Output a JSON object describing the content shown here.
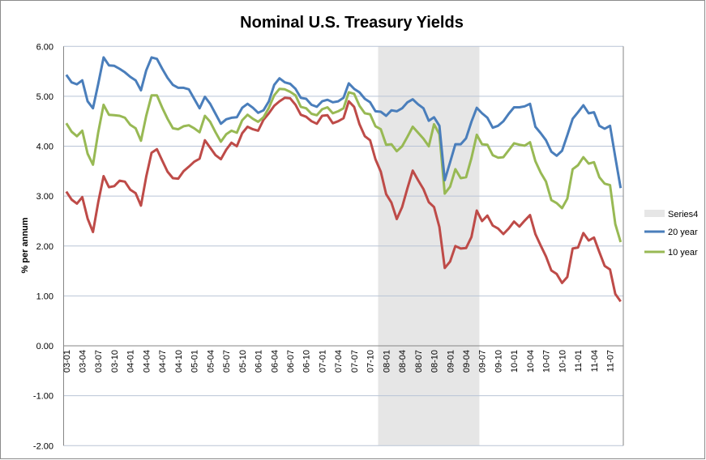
{
  "chart_data": {
    "type": "line",
    "title": "Nominal U.S. Treasury Yields",
    "xlabel": "",
    "ylabel": "% per annum",
    "ylim": [
      -2,
      6
    ],
    "yticks": [
      "-2.00",
      "-1.00",
      "0.00",
      "1.00",
      "2.00",
      "3.00",
      "4.00",
      "5.00",
      "6.00"
    ],
    "grid": true,
    "legend": "right",
    "categories": [
      "03-01",
      "03-02",
      "03-03",
      "03-04",
      "03-05",
      "03-06",
      "03-07",
      "03-08",
      "03-09",
      "03-10",
      "03-11",
      "03-12",
      "04-01",
      "04-02",
      "04-03",
      "04-04",
      "04-05",
      "04-06",
      "04-07",
      "04-08",
      "04-09",
      "04-10",
      "04-11",
      "04-12",
      "05-01",
      "05-02",
      "05-03",
      "05-04",
      "05-05",
      "05-06",
      "05-07",
      "05-08",
      "05-09",
      "05-10",
      "05-11",
      "05-12",
      "06-01",
      "06-02",
      "06-03",
      "06-04",
      "06-05",
      "06-06",
      "06-07",
      "06-08",
      "06-09",
      "06-10",
      "06-11",
      "06-12",
      "07-01",
      "07-02",
      "07-03",
      "07-04",
      "07-05",
      "07-06",
      "07-07",
      "07-08",
      "07-09",
      "07-10",
      "07-11",
      "07-12",
      "08-01",
      "08-02",
      "08-03",
      "08-04",
      "08-05",
      "08-06",
      "08-07",
      "08-08",
      "08-09",
      "08-10",
      "08-11",
      "08-12",
      "09-01",
      "09-02",
      "09-03",
      "09-04",
      "09-05",
      "09-06",
      "09-07",
      "09-08",
      "09-09",
      "09-10",
      "09-11",
      "09-12",
      "10-01",
      "10-02",
      "10-03",
      "10-04",
      "10-05",
      "10-06",
      "10-07",
      "10-08",
      "10-09",
      "10-10",
      "10-11",
      "10-12",
      "11-01",
      "11-02",
      "11-03",
      "11-04",
      "11-05",
      "11-06",
      "11-07",
      "11-08",
      "11-09"
    ],
    "tick_labels": [
      "03-01",
      "03-04",
      "03-07",
      "03-10",
      "04-01",
      "04-04",
      "04-07",
      "04-10",
      "05-01",
      "05-04",
      "05-07",
      "05-10",
      "06-01",
      "06-04",
      "06-07",
      "06-10",
      "07-01",
      "07-04",
      "07-07",
      "07-10",
      "08-01",
      "08-04",
      "08-07",
      "08-10",
      "09-01",
      "09-04",
      "09-07",
      "09-10",
      "10-01",
      "10-04",
      "10-07",
      "10-10",
      "11-01",
      "11-04",
      "11-07"
    ],
    "shaded_series": {
      "name": "Series4",
      "from": "07-12",
      "to": "09-06",
      "color": "#e6e6e6"
    },
    "series": [
      {
        "name": "20 year",
        "color": "#4a7ebb",
        "in_legend": true,
        "values": [
          5.43,
          5.28,
          5.24,
          5.32,
          4.9,
          4.76,
          5.25,
          5.78,
          5.62,
          5.61,
          5.55,
          5.48,
          5.39,
          5.32,
          5.12,
          5.52,
          5.78,
          5.75,
          5.55,
          5.37,
          5.23,
          5.17,
          5.17,
          5.14,
          4.95,
          4.76,
          4.99,
          4.85,
          4.65,
          4.45,
          4.54,
          4.57,
          4.58,
          4.77,
          4.85,
          4.77,
          4.67,
          4.72,
          4.9,
          5.23,
          5.36,
          5.28,
          5.25,
          5.15,
          4.97,
          4.95,
          4.83,
          4.79,
          4.9,
          4.93,
          4.88,
          4.9,
          4.97,
          5.26,
          5.15,
          5.08,
          4.95,
          4.88,
          4.7,
          4.69,
          4.61,
          4.72,
          4.7,
          4.76,
          4.88,
          4.94,
          4.84,
          4.76,
          4.51,
          4.58,
          4.41,
          3.32,
          3.68,
          4.04,
          4.04,
          4.16,
          4.49,
          4.77,
          4.66,
          4.57,
          4.37,
          4.41,
          4.5,
          4.65,
          4.78,
          4.78,
          4.8,
          4.85,
          4.39,
          4.26,
          4.12,
          3.89,
          3.81,
          3.91,
          4.22,
          4.55,
          4.68,
          4.82,
          4.66,
          4.68,
          4.41,
          4.35,
          4.41,
          3.78,
          3.16
        ]
      },
      {
        "name": "10 year",
        "color": "#98b954",
        "in_legend": true,
        "values": [
          4.46,
          4.29,
          4.2,
          4.31,
          3.85,
          3.63,
          4.28,
          4.83,
          4.63,
          4.62,
          4.61,
          4.57,
          4.43,
          4.36,
          4.11,
          4.61,
          5.02,
          5.02,
          4.77,
          4.55,
          4.36,
          4.34,
          4.4,
          4.42,
          4.36,
          4.28,
          4.61,
          4.49,
          4.28,
          4.09,
          4.24,
          4.31,
          4.27,
          4.52,
          4.63,
          4.55,
          4.49,
          4.58,
          4.77,
          5.02,
          5.15,
          5.14,
          5.09,
          5.02,
          4.79,
          4.76,
          4.65,
          4.62,
          4.74,
          4.78,
          4.66,
          4.7,
          4.76,
          5.08,
          5.05,
          4.81,
          4.66,
          4.64,
          4.4,
          4.34,
          4.03,
          4.04,
          3.9,
          4.0,
          4.19,
          4.39,
          4.27,
          4.15,
          4.0,
          4.44,
          4.24,
          3.05,
          3.19,
          3.54,
          3.36,
          3.38,
          3.76,
          4.23,
          4.04,
          4.03,
          3.82,
          3.77,
          3.78,
          3.92,
          4.06,
          4.03,
          4.01,
          4.08,
          3.7,
          3.47,
          3.29,
          2.92,
          2.86,
          2.76,
          2.95,
          3.54,
          3.62,
          3.78,
          3.65,
          3.68,
          3.38,
          3.25,
          3.22,
          2.44,
          2.08
        ]
      },
      {
        "color": "#be4b48",
        "in_legend": false,
        "values": [
          3.09,
          2.93,
          2.85,
          2.98,
          2.55,
          2.28,
          2.88,
          3.4,
          3.18,
          3.2,
          3.31,
          3.29,
          3.13,
          3.06,
          2.81,
          3.39,
          3.87,
          3.94,
          3.71,
          3.49,
          3.36,
          3.35,
          3.5,
          3.59,
          3.69,
          3.75,
          4.12,
          3.97,
          3.82,
          3.74,
          3.93,
          4.07,
          4.0,
          4.26,
          4.39,
          4.34,
          4.31,
          4.53,
          4.66,
          4.81,
          4.9,
          4.97,
          4.96,
          4.83,
          4.63,
          4.59,
          4.5,
          4.45,
          4.61,
          4.62,
          4.46,
          4.5,
          4.56,
          4.9,
          4.79,
          4.44,
          4.2,
          4.12,
          3.74,
          3.49,
          3.04,
          2.87,
          2.54,
          2.78,
          3.16,
          3.51,
          3.32,
          3.14,
          2.88,
          2.78,
          2.38,
          1.56,
          1.69,
          2.0,
          1.95,
          1.96,
          2.18,
          2.71,
          2.5,
          2.61,
          2.41,
          2.35,
          2.24,
          2.35,
          2.49,
          2.39,
          2.51,
          2.62,
          2.24,
          2.01,
          1.79,
          1.51,
          1.44,
          1.26,
          1.38,
          1.95,
          1.97,
          2.26,
          2.11,
          2.17,
          1.88,
          1.6,
          1.53,
          1.04,
          0.89
        ]
      }
    ],
    "gridline_color": "#b9c4d6"
  }
}
